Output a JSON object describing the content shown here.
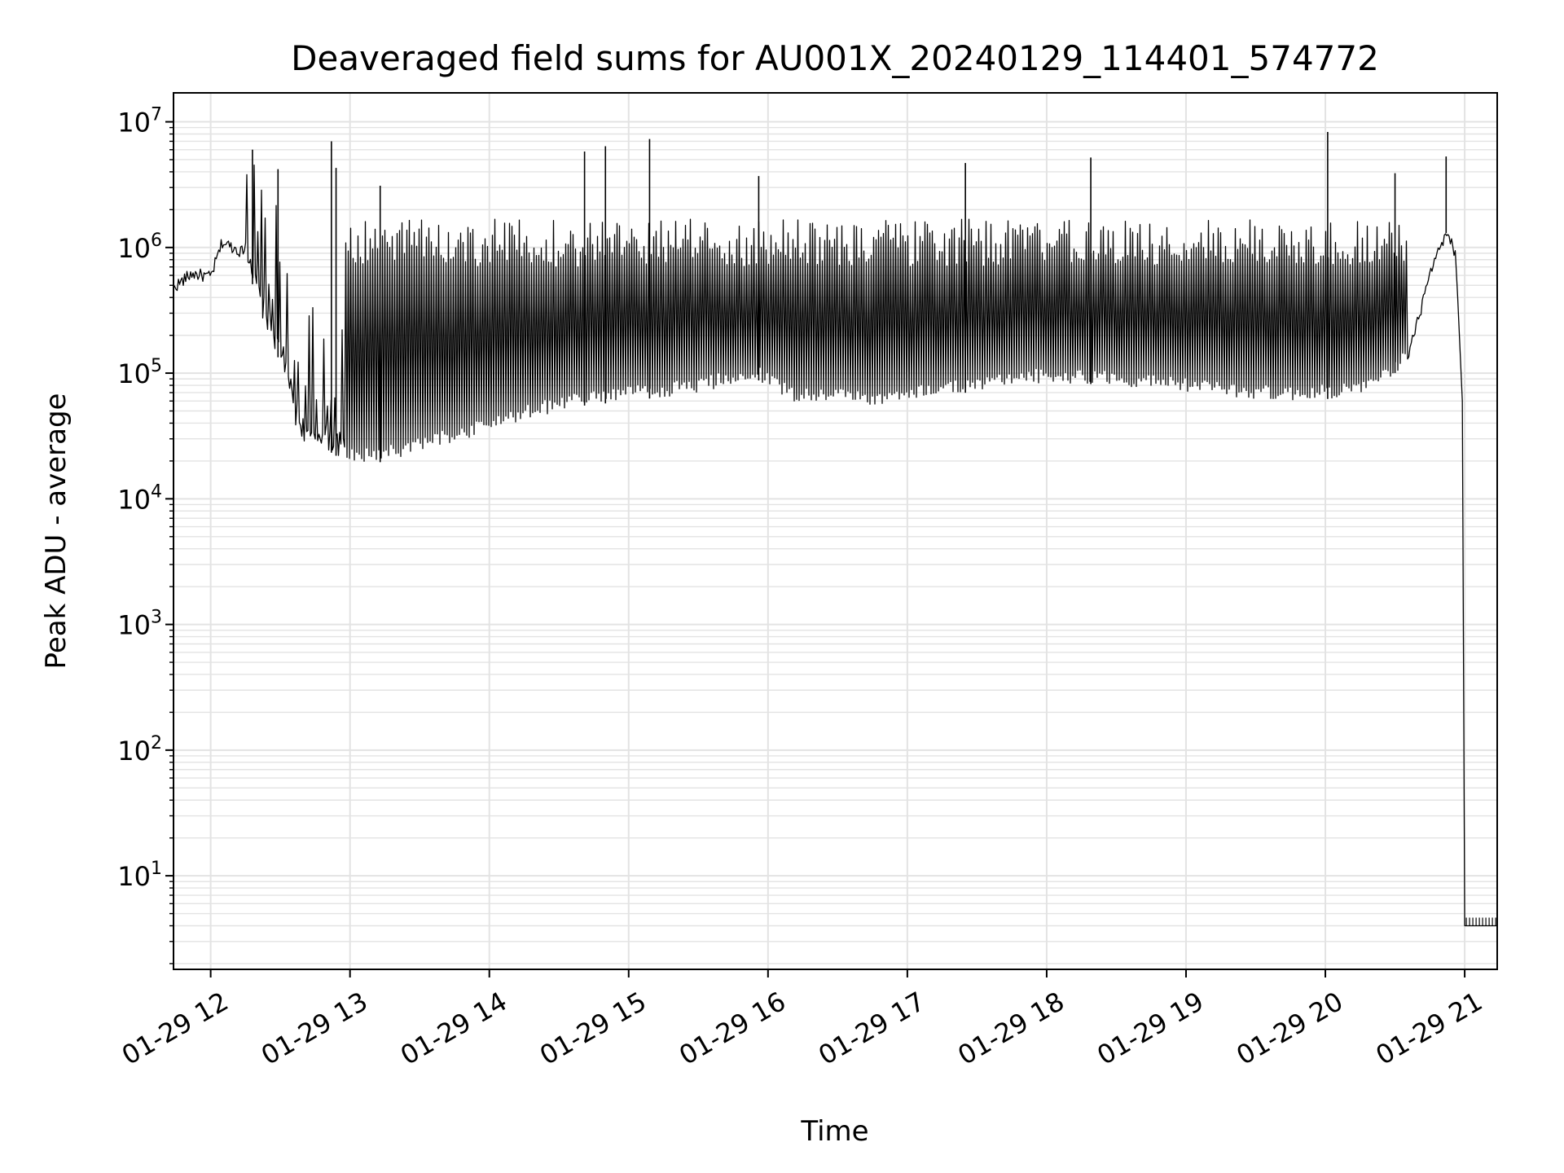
{
  "chart_data": {
    "type": "line",
    "title": "Deaveraged field sums for AU001X_20240129_114401_574772",
    "xlabel": "Time",
    "ylabel": "Peak ADU - average",
    "yscale": "log",
    "ylim": [
      1.8,
      17000000
    ],
    "xlim": [
      "2024-01-29 11:44",
      "2024-01-29 21:14"
    ],
    "grid": true,
    "line_color": "#000000",
    "grid_color": "#e3e3e3",
    "x_tick_labels": [
      "01-29 12",
      "01-29 13",
      "01-29 14",
      "01-29 15",
      "01-29 16",
      "01-29 17",
      "01-29 18",
      "01-29 19",
      "01-29 20",
      "01-29 21"
    ],
    "x_ticks": [
      "2024-01-29 12:00",
      "2024-01-29 13:00",
      "2024-01-29 14:00",
      "2024-01-29 15:00",
      "2024-01-29 16:00",
      "2024-01-29 17:00",
      "2024-01-29 18:00",
      "2024-01-29 19:00",
      "2024-01-29 20:00",
      "2024-01-29 21:00"
    ],
    "y_ticks": [
      {
        "base": "10",
        "exp": "1",
        "value": 10
      },
      {
        "base": "10",
        "exp": "2",
        "value": 100
      },
      {
        "base": "10",
        "exp": "3",
        "value": 1000
      },
      {
        "base": "10",
        "exp": "4",
        "value": 10000
      },
      {
        "base": "10",
        "exp": "5",
        "value": 100000
      },
      {
        "base": "10",
        "exp": "6",
        "value": 1000000
      },
      {
        "base": "10",
        "exp": "7",
        "value": 10000000
      }
    ],
    "series": [
      {
        "baseline": {
          "x": [
            "2024-01-29 11:44",
            "2024-01-29 11:52",
            "2024-01-29 12:00",
            "2024-01-29 12:05",
            "2024-01-29 12:15",
            "2024-01-29 12:20",
            "2024-01-29 12:30",
            "2024-01-29 12:36",
            "2024-01-29 12:42",
            "2024-01-29 12:48",
            "2024-01-29 12:54",
            "2024-01-29 13:00",
            "2024-01-29 13:10",
            "2024-01-29 13:20",
            "2024-01-29 13:30",
            "2024-01-29 13:45",
            "2024-01-29 14:00",
            "2024-01-29 14:20",
            "2024-01-29 14:40",
            "2024-01-29 15:00",
            "2024-01-29 15:30",
            "2024-01-29 15:55",
            "2024-01-29 16:10",
            "2024-01-29 16:30",
            "2024-01-29 16:50",
            "2024-01-29 17:10",
            "2024-01-29 17:40",
            "2024-01-29 18:00",
            "2024-01-29 18:30",
            "2024-01-29 19:00",
            "2024-01-29 19:20",
            "2024-01-29 19:40",
            "2024-01-29 20:00",
            "2024-01-29 20:20",
            "2024-01-29 20:35",
            "2024-01-29 20:45",
            "2024-01-29 20:52",
            "2024-01-29 20:56"
          ],
          "y": [
            480000,
            620000,
            580000,
            1100000,
            900000,
            350000,
            120000,
            40000,
            24000,
            26000,
            22000,
            20000,
            19000,
            21000,
            24000,
            28000,
            35000,
            45000,
            55000,
            60000,
            70000,
            90000,
            60000,
            58000,
            55000,
            65000,
            75000,
            85000,
            80000,
            70000,
            65000,
            60000,
            62000,
            70000,
            120000,
            600000,
            1300000,
            900000
          ]
        },
        "spikes": [
          {
            "x": "2024-01-29 12:18",
            "y": 6000000
          },
          {
            "x": "2024-01-29 12:29",
            "y": 4200000
          },
          {
            "x": "2024-01-29 12:52",
            "y": 7000000
          },
          {
            "x": "2024-01-29 12:54",
            "y": 4300000
          },
          {
            "x": "2024-01-29 13:13",
            "y": 3100000
          },
          {
            "x": "2024-01-29 14:41",
            "y": 5800000
          },
          {
            "x": "2024-01-29 14:50",
            "y": 6400000
          },
          {
            "x": "2024-01-29 15:09",
            "y": 7300000
          },
          {
            "x": "2024-01-29 15:56",
            "y": 3700000
          },
          {
            "x": "2024-01-29 17:25",
            "y": 4700000
          },
          {
            "x": "2024-01-29 18:19",
            "y": 5200000
          },
          {
            "x": "2024-01-29 20:01",
            "y": 8300000
          },
          {
            "x": "2024-01-29 20:30",
            "y": 3900000
          },
          {
            "x": "2024-01-29 20:52",
            "y": 5300000
          }
        ],
        "drop": {
          "x": [
            "2024-01-29 20:57",
            "2024-01-29 20:59",
            "2024-01-29 21:00",
            "2024-01-29 21:14"
          ],
          "y": [
            400000,
            60000,
            4,
            4
          ]
        }
      }
    ]
  }
}
